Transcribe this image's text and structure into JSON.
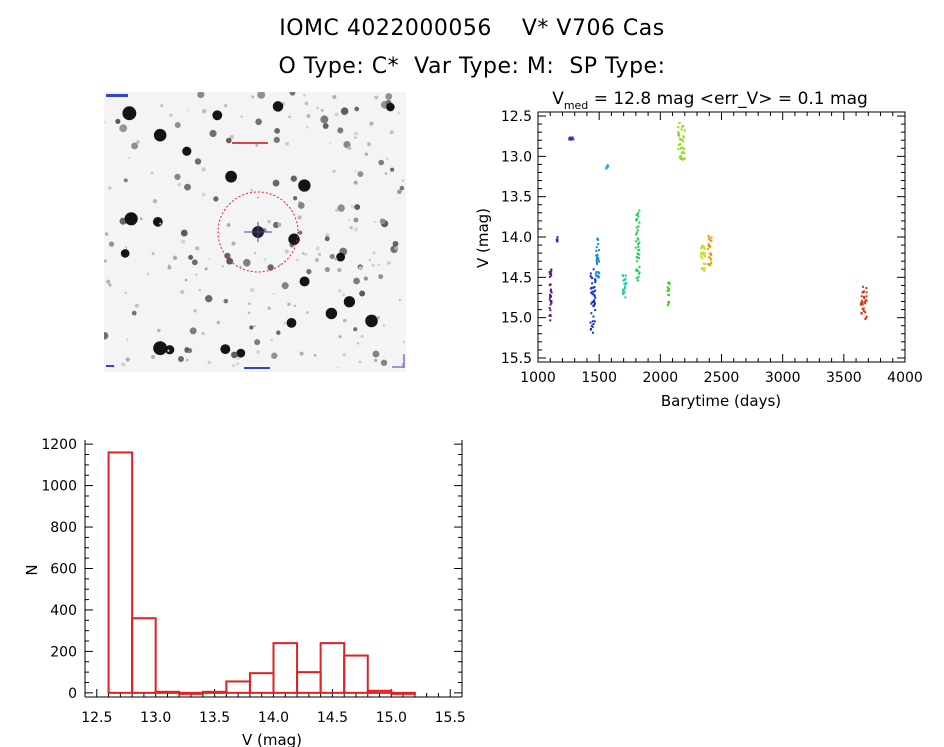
{
  "header": {
    "line1_id": "IOMC 4022000056",
    "line1_name": "V* V706 Cas",
    "line2_otype": "O Type: C*",
    "line2_vartype": "Var Type: M:",
    "line2_sptype": "SP Type:"
  },
  "colors": {
    "histogram": "#dd2222",
    "finder_circle": "#dd2222",
    "axis": "#000000",
    "sky_background": "#f4f4f4",
    "stars": "#222222"
  },
  "chart_data": [
    {
      "type": "scatter",
      "title_parts": [
        "V",
        "med",
        " = 12.8 mag <err_V> = 0.1 mag"
      ],
      "xlabel": "Barytime (days)",
      "ylabel": "V (mag)",
      "xlim": [
        1000,
        4000
      ],
      "ylim": [
        15.55,
        12.45
      ],
      "y_inverted": true,
      "xticks": [
        1000,
        1500,
        2000,
        2500,
        3000,
        3500,
        4000
      ],
      "yticks": [
        12.5,
        13.0,
        13.5,
        14.0,
        14.5,
        15.0,
        15.5
      ],
      "xtick_labels": [
        "1000",
        "1500",
        "2000",
        "2500",
        "3000",
        "3500",
        "4000"
      ],
      "ytick_labels": [
        "12.5",
        "13.0",
        "13.5",
        "14.0",
        "14.5",
        "15.0",
        "15.5"
      ],
      "grid": false,
      "segments": [
        {
          "x": [
            1095,
            1110
          ],
          "y": [
            14.4,
            15.05
          ],
          "color": "#5a1a7a"
        },
        {
          "x": [
            1155,
            1160
          ],
          "y": [
            14.0,
            14.08
          ],
          "color": "#4a1a9a"
        },
        {
          "x": [
            1255,
            1290
          ],
          "y": [
            12.76,
            12.8
          ],
          "color": "#4433aa"
        },
        {
          "x": [
            1430,
            1470
          ],
          "y": [
            14.4,
            15.2
          ],
          "color": "#1133cc"
        },
        {
          "x": [
            1475,
            1500
          ],
          "y": [
            14.02,
            14.5
          ],
          "color": "#1188dd"
        },
        {
          "x": [
            1560,
            1570
          ],
          "y": [
            13.1,
            13.15
          ],
          "color": "#22aacc"
        },
        {
          "x": [
            1690,
            1720
          ],
          "y": [
            14.45,
            14.75
          ],
          "color": "#22ccaa"
        },
        {
          "x": [
            1800,
            1830
          ],
          "y": [
            13.65,
            14.55
          ],
          "color": "#22cc55"
        },
        {
          "x": [
            2060,
            2075
          ],
          "y": [
            14.55,
            14.85
          ],
          "color": "#44cc22"
        },
        {
          "x": [
            2145,
            2200
          ],
          "y": [
            12.58,
            13.05
          ],
          "color": "#88dd11"
        },
        {
          "x": [
            2330,
            2370
          ],
          "y": [
            14.1,
            14.45
          ],
          "color": "#ccdd11"
        },
        {
          "x": [
            2390,
            2420
          ],
          "y": [
            13.95,
            14.35
          ],
          "color": "#ee9900"
        },
        {
          "x": [
            3640,
            3690
          ],
          "y": [
            14.58,
            15.02
          ],
          "color": "#dd3311"
        }
      ]
    },
    {
      "type": "bar",
      "style": "step-histogram",
      "xlabel": "V (mag)",
      "ylabel": "N",
      "xlim": [
        12.4,
        15.6
      ],
      "ylim": [
        -20,
        1220
      ],
      "xticks": [
        12.5,
        13.0,
        13.5,
        14.0,
        14.5,
        15.0,
        15.5
      ],
      "yticks": [
        0,
        200,
        400,
        600,
        800,
        1000,
        1200
      ],
      "xtick_labels": [
        "12.5",
        "13.0",
        "13.5",
        "14.0",
        "14.5",
        "15.0",
        "15.5"
      ],
      "ytick_labels": [
        "0",
        "200",
        "400",
        "600",
        "800",
        "1000",
        "1200"
      ],
      "bin_edges": [
        12.6,
        12.8,
        13.0,
        13.2,
        13.4,
        13.6,
        13.8,
        14.0,
        14.2,
        14.4,
        14.6,
        14.8,
        15.0,
        15.2
      ],
      "counts": [
        1160,
        360,
        5,
        0,
        5,
        55,
        95,
        240,
        100,
        240,
        180,
        10,
        0
      ]
    }
  ]
}
